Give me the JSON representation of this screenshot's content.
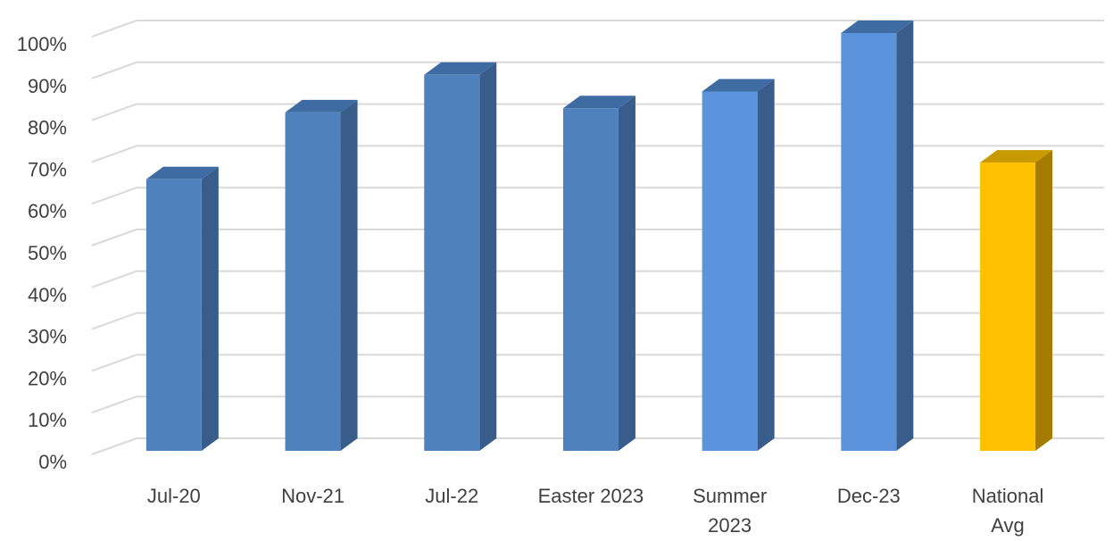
{
  "chart_data": {
    "type": "bar",
    "title": "",
    "xlabel": "",
    "ylabel": "",
    "ylim": [
      0,
      100
    ],
    "y_ticks": [
      "0%",
      "10%",
      "20%",
      "30%",
      "40%",
      "50%",
      "60%",
      "70%",
      "80%",
      "90%",
      "100%"
    ],
    "grid": true,
    "style": "3d-column",
    "categories": [
      [
        "Jul-20"
      ],
      [
        "Nov-21"
      ],
      [
        "Jul-22"
      ],
      [
        "Easter 2023"
      ],
      [
        "Summer",
        "2023"
      ],
      [
        "Dec-23"
      ],
      [
        "National",
        "Avg"
      ]
    ],
    "values": [
      65,
      81,
      90,
      82,
      86,
      100,
      69
    ],
    "colors": [
      {
        "front": "#4f81bd",
        "side": "#385d8a",
        "top": "#3f6ba3"
      },
      {
        "front": "#4f81bd",
        "side": "#385d8a",
        "top": "#3f6ba3"
      },
      {
        "front": "#4f81bd",
        "side": "#385d8a",
        "top": "#3f6ba3"
      },
      {
        "front": "#4f81bd",
        "side": "#385d8a",
        "top": "#3f6ba3"
      },
      {
        "front": "#5b93dc",
        "side": "#385d8a",
        "top": "#3f6ba3"
      },
      {
        "front": "#5b93dc",
        "side": "#385d8a",
        "top": "#3f6ba3"
      },
      {
        "front": "#ffc000",
        "side": "#a67c00",
        "top": "#c99a00"
      }
    ]
  }
}
